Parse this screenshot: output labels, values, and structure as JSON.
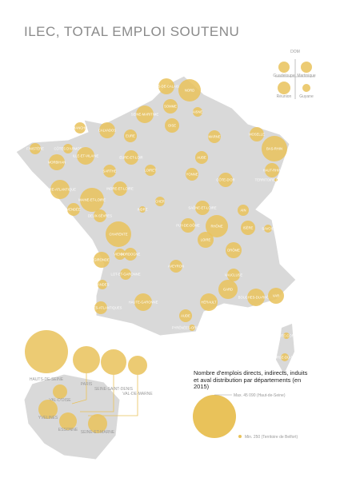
{
  "title": "ILEC, TOTAL EMPLOI SOUTENU",
  "bubble_color": "#e9c25a",
  "dom": {
    "title": "DOM",
    "departments": [
      {
        "name": "Guadeloupe",
        "value": 3030
      },
      {
        "name": "Martinique",
        "value": 3030
      },
      {
        "name": "Réunion",
        "value": 3960
      },
      {
        "name": "Guyane",
        "value": 1550
      }
    ]
  },
  "departments": [
    {
      "name": "NORD",
      "value": 12120
    },
    {
      "name": "PAS-DE-CALAIS",
      "value": 6190
    },
    {
      "name": "SOMME",
      "value": 5010
    },
    {
      "name": "SEINE-MARITIME",
      "value": 7480
    },
    {
      "name": "OISE",
      "value": 5010
    },
    {
      "name": "AISNE",
      "value": 2230
    },
    {
      "name": "MARNE",
      "value": 3960
    },
    {
      "name": "MOSELLE",
      "value": 5010
    },
    {
      "name": "BAS-RHIN",
      "value": 15830
    },
    {
      "name": "HAUT-RHIN",
      "value": 5010
    },
    {
      "name": "TERRITOIRE DE BELFORT",
      "value": 250
    },
    {
      "name": "FINISTÈRE",
      "value": 3030
    },
    {
      "name": "CÔTES D'ARMOR",
      "value": 2230
    },
    {
      "name": "MORBIHAN",
      "value": 6190
    },
    {
      "name": "ILLE-ET-VILAINE",
      "value": 7480
    },
    {
      "name": "LOIRE-ATLANTIQUE",
      "value": 8910
    },
    {
      "name": "VENDÉE",
      "value": 3960
    },
    {
      "name": "MAINE-ET-LOIRE",
      "value": 13920
    },
    {
      "name": "SARTHE",
      "value": 3960
    },
    {
      "name": "CALVADOS",
      "value": 6190
    },
    {
      "name": "MANCHE",
      "value": 3030
    },
    {
      "name": "EURE",
      "value": 3960
    },
    {
      "name": "LOIRET",
      "value": 3030
    },
    {
      "name": "EURE-ET-LOIR",
      "value": 5010
    },
    {
      "name": "INDRE-ET-LOIRE",
      "value": 5010
    },
    {
      "name": "CHER",
      "value": 2230
    },
    {
      "name": "INDRE",
      "value": 990
    },
    {
      "name": "VIENNE",
      "value": 3030
    },
    {
      "name": "DEUX-SÈVRES",
      "value": 3960
    },
    {
      "name": "CHARENTE",
      "value": 15830
    },
    {
      "name": "GIRONDE",
      "value": 6190
    },
    {
      "name": "DORDOGNE",
      "value": 3960
    },
    {
      "name": "LANDES",
      "value": 2230
    },
    {
      "name": "LOT-ET-GARONNE",
      "value": 3030
    },
    {
      "name": "PYRÉNÉES-ATLANTIQUES",
      "value": 3960
    },
    {
      "name": "HAUTE-GARONNE",
      "value": 7480
    },
    {
      "name": "AVEYRON",
      "value": 3960
    },
    {
      "name": "HÉRAULT",
      "value": 7480
    },
    {
      "name": "GARD",
      "value": 8910
    },
    {
      "name": "BOUCHES-DU-RHÔNE",
      "value": 7480
    },
    {
      "name": "VAUCLUSE",
      "value": 3960
    },
    {
      "name": "DRÔME",
      "value": 6190
    },
    {
      "name": "ISÈRE",
      "value": 5010
    },
    {
      "name": "RHÔNE",
      "value": 12120
    },
    {
      "name": "LOIRE",
      "value": 6190
    },
    {
      "name": "AIN",
      "value": 3030
    },
    {
      "name": "SAVOIE",
      "value": 1550
    },
    {
      "name": "SAÔNE-ET-LOIRE",
      "value": 5010
    },
    {
      "name": "CÔTE-D'OR",
      "value": 5010
    },
    {
      "name": "YONNE",
      "value": 3960
    },
    {
      "name": "AUBE",
      "value": 3960
    },
    {
      "name": "PUY-DE-DÔME",
      "value": 5010
    },
    {
      "name": "VAR",
      "value": 6190
    },
    {
      "name": "AUDE",
      "value": 3960
    },
    {
      "name": "PYRÉNÉES-ORIENTALES",
      "value": 990
    },
    {
      "name": "HAUTE-CORSE",
      "value": 990
    },
    {
      "name": "CORSE-DU-SUD",
      "value": 1550
    }
  ],
  "ile_de_france": [
    {
      "name": "HAUTS-DE-SEINE",
      "value": 45090
    },
    {
      "name": "PARIS",
      "value": 17870
    },
    {
      "name": "SEINE-SAINT-DENIS",
      "value": 15830
    },
    {
      "name": "VAL-DE-MARNE",
      "value": 8910
    },
    {
      "name": "VAL-D'OISE",
      "value": 5010
    },
    {
      "name": "YVELINES",
      "value": 8910
    },
    {
      "name": "ESSONNE",
      "value": 7480
    },
    {
      "name": "SEINE-ET-MARNE",
      "value": 8910
    }
  ],
  "legend": {
    "title": "Nombre d'emplois directs, indirects, induits et aval distribution par départements (en 2015)",
    "max": {
      "value": 45090,
      "label": "Max. 45 090 (Haut-de-Seine)"
    },
    "min": {
      "value": 250,
      "label": "Min. 250 (Territoire de Belfort)"
    }
  }
}
